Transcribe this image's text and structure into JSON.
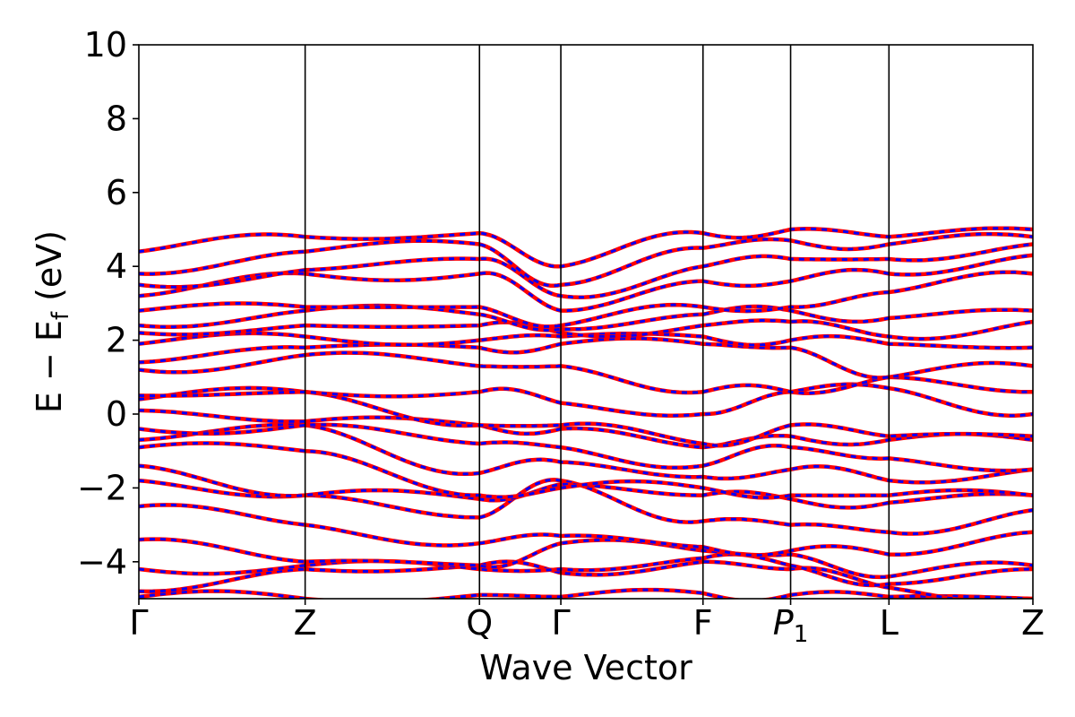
{
  "chart_data": {
    "type": "line",
    "title": "",
    "xlabel": "Wave Vector",
    "ylabel": "E − E",
    "ylabel_subscript": "f",
    "ylabel_unit": "(eV)",
    "ylim": [
      -5,
      10
    ],
    "yticks": [
      "−4",
      "−2",
      "0",
      "2",
      "4",
      "6",
      "8",
      "10"
    ],
    "ytick_values": [
      -4,
      -2,
      0,
      2,
      4,
      6,
      8,
      10
    ],
    "kpath": [
      {
        "label": "Γ",
        "sub": "",
        "italic": false,
        "x": 0.0
      },
      {
        "label": "Z",
        "sub": "",
        "italic": false,
        "x": 0.186
      },
      {
        "label": "Q",
        "sub": "",
        "italic": false,
        "x": 0.381
      },
      {
        "label": "Γ",
        "sub": "",
        "italic": false,
        "x": 0.472
      },
      {
        "label": "F",
        "sub": "",
        "italic": false,
        "x": 0.631
      },
      {
        "label": "P",
        "sub": "1",
        "italic": true,
        "x": 0.729
      },
      {
        "label": "L",
        "sub": "",
        "italic": false,
        "x": 0.839
      },
      {
        "label": "Z",
        "sub": "",
        "italic": false,
        "x": 1.0
      }
    ],
    "series_style": [
      {
        "color": "#ff0000",
        "linestyle": "solid"
      },
      {
        "color": "#0000ff",
        "linestyle": "dashed"
      }
    ],
    "band_energies_at_kpoints": [
      [
        -4.95,
        -5.0,
        -4.9,
        -4.95,
        -4.85,
        -4.9,
        -4.95,
        -5.0
      ],
      [
        -4.8,
        -4.2,
        -4.1,
        -4.3,
        -4.0,
        -4.2,
        -4.7,
        -5.0
      ],
      [
        -4.2,
        -4.1,
        -4.2,
        -4.2,
        -3.9,
        -4.1,
        -4.6,
        -4.2
      ],
      [
        -3.4,
        -4.0,
        -4.1,
        -3.5,
        -3.7,
        -3.8,
        -4.4,
        -4.1
      ],
      [
        -2.5,
        -3.0,
        -3.5,
        -3.3,
        -3.6,
        -3.7,
        -3.8,
        -3.2
      ],
      [
        -1.8,
        -2.2,
        -2.8,
        -1.8,
        -2.9,
        -3.0,
        -3.2,
        -2.6
      ],
      [
        -1.4,
        -2.2,
        -2.3,
        -1.9,
        -2.2,
        -2.3,
        -2.4,
        -2.2
      ],
      [
        -0.9,
        -1.0,
        -2.2,
        -2.0,
        -2.0,
        -2.2,
        -2.2,
        -2.2
      ],
      [
        -0.7,
        -0.3,
        -1.6,
        -1.3,
        -1.7,
        -1.5,
        -1.8,
        -1.5
      ],
      [
        -0.4,
        -0.3,
        -0.8,
        -0.9,
        -1.4,
        -0.9,
        -1.2,
        -1.5
      ],
      [
        0.1,
        -0.2,
        -0.3,
        -0.4,
        -0.9,
        -0.6,
        -0.7,
        -0.7
      ],
      [
        0.4,
        0.6,
        -0.3,
        -0.3,
        -0.8,
        -0.3,
        -0.6,
        -0.6
      ],
      [
        0.5,
        0.6,
        0.6,
        0.3,
        0.0,
        0.6,
        0.7,
        0.0
      ],
      [
        1.2,
        1.6,
        1.3,
        1.3,
        0.6,
        0.6,
        1.0,
        0.6
      ],
      [
        1.4,
        1.8,
        1.8,
        1.9,
        1.9,
        1.8,
        1.0,
        1.3
      ],
      [
        1.9,
        2.1,
        2.0,
        2.1,
        2.1,
        2.0,
        1.9,
        1.8
      ],
      [
        2.2,
        2.4,
        2.4,
        2.2,
        2.4,
        2.5,
        2.1,
        2.5
      ],
      [
        2.4,
        2.8,
        2.7,
        2.3,
        2.7,
        2.8,
        2.6,
        2.8
      ],
      [
        2.8,
        2.9,
        2.9,
        2.4,
        2.9,
        2.9,
        3.3,
        3.8
      ],
      [
        3.2,
        3.8,
        3.8,
        2.8,
        3.6,
        3.6,
        3.8,
        4.3
      ],
      [
        3.5,
        3.9,
        4.2,
        3.2,
        4.0,
        4.2,
        4.2,
        4.6
      ],
      [
        3.8,
        4.4,
        4.6,
        3.5,
        4.5,
        4.7,
        4.6,
        4.8
      ],
      [
        4.4,
        4.8,
        4.9,
        4.0,
        4.9,
        5.0,
        4.8,
        5.0
      ]
    ],
    "grid": false,
    "legend": "none"
  }
}
